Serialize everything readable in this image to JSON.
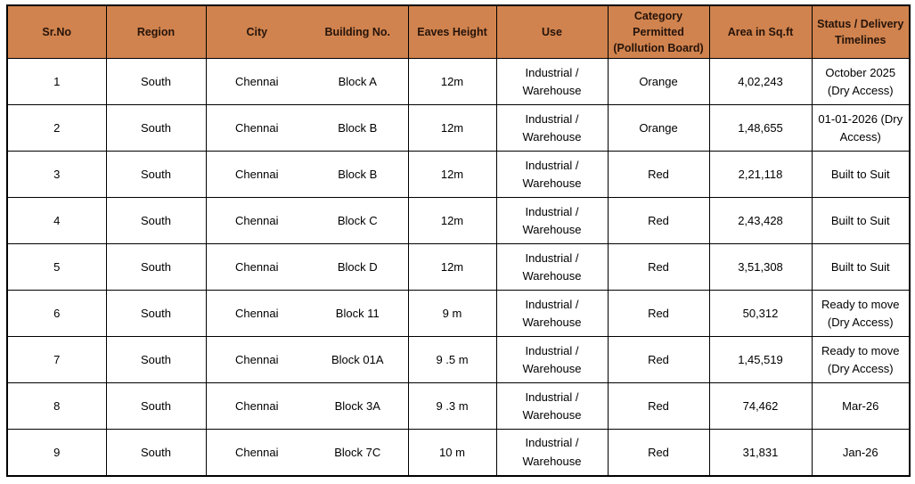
{
  "colors": {
    "header_bg": "#d0834e",
    "header_text": "#26130a",
    "border": "#000000",
    "cell_text": "#000000"
  },
  "table": {
    "columns": [
      {
        "key": "sr_no",
        "label": "Sr.No"
      },
      {
        "key": "region",
        "label": "Region"
      },
      {
        "key": "city",
        "label": "City"
      },
      {
        "key": "building_no",
        "label": "Building No."
      },
      {
        "key": "eaves_height",
        "label": "Eaves Height"
      },
      {
        "key": "use",
        "label": "Use"
      },
      {
        "key": "category",
        "label": "Category Permitted\n(Pollution Board)"
      },
      {
        "key": "area",
        "label": "Area in Sq.ft"
      },
      {
        "key": "status",
        "label": "Status / Delivery\nTimelines"
      }
    ],
    "rows": [
      {
        "sr_no": "1",
        "region": "South",
        "city": "Chennai",
        "building_no": "Block A",
        "eaves_height": "12m",
        "use": "Industrial / Warehouse",
        "category": "Orange",
        "area": "4,02,243",
        "status": "October 2025  (Dry Access)"
      },
      {
        "sr_no": "2",
        "region": "South",
        "city": "Chennai",
        "building_no": "Block B",
        "eaves_height": "12m",
        "use": "Industrial / Warehouse",
        "category": "Orange",
        "area": "1,48,655",
        "status": "01-01-2026 (Dry Access)"
      },
      {
        "sr_no": "3",
        "region": "South",
        "city": "Chennai",
        "building_no": "Block B",
        "eaves_height": "12m",
        "use": "Industrial / Warehouse",
        "category": "Red",
        "area": "2,21,118",
        "status": "Built to Suit"
      },
      {
        "sr_no": "4",
        "region": "South",
        "city": "Chennai",
        "building_no": "Block C",
        "eaves_height": "12m",
        "use": "Industrial / Warehouse",
        "category": "Red",
        "area": "2,43,428",
        "status": "Built to Suit"
      },
      {
        "sr_no": "5",
        "region": "South",
        "city": "Chennai",
        "building_no": "Block D",
        "eaves_height": "12m",
        "use": "Industrial / Warehouse",
        "category": "Red",
        "area": "3,51,308",
        "status": "Built to Suit"
      },
      {
        "sr_no": "6",
        "region": "South",
        "city": "Chennai",
        "building_no": "Block 11",
        "eaves_height": "9 m",
        "use": "Industrial / Warehouse",
        "category": "Red",
        "area": "50,312",
        "status": "Ready to move (Dry Access)"
      },
      {
        "sr_no": "7",
        "region": "South",
        "city": "Chennai",
        "building_no": "Block 01A",
        "eaves_height": "9 .5 m",
        "use": "Industrial / Warehouse",
        "category": "Red",
        "area": "1,45,519",
        "status": "Ready to move (Dry Access)"
      },
      {
        "sr_no": "8",
        "region": "South",
        "city": "Chennai",
        "building_no": "Block 3A",
        "eaves_height": "9 .3 m",
        "use": "Industrial / Warehouse",
        "category": "Red",
        "area": "74,462",
        "status": "Mar-26"
      },
      {
        "sr_no": "9",
        "region": "South",
        "city": "Chennai",
        "building_no": "Block 7C",
        "eaves_height": "10 m",
        "use": "Industrial / Warehouse",
        "category": "Red",
        "area": "31,831",
        "status": "Jan-26"
      }
    ]
  }
}
